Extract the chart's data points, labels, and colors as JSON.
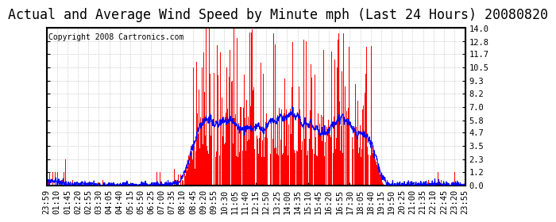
{
  "title": "Actual and Average Wind Speed by Minute mph (Last 24 Hours) 20080820",
  "copyright": "Copyright 2008 Cartronics.com",
  "yticks": [
    0.0,
    1.2,
    2.3,
    3.5,
    4.7,
    5.8,
    7.0,
    8.2,
    9.3,
    10.5,
    11.7,
    12.8,
    14.0
  ],
  "ylim": [
    0,
    14.0
  ],
  "xlabels": [
    "23:59",
    "01:10",
    "01:45",
    "02:20",
    "02:55",
    "03:30",
    "04:05",
    "04:40",
    "05:15",
    "05:50",
    "06:25",
    "07:00",
    "07:35",
    "08:10",
    "08:45",
    "09:20",
    "09:55",
    "10:30",
    "11:05",
    "11:40",
    "12:15",
    "12:50",
    "13:25",
    "14:00",
    "14:35",
    "15:10",
    "15:45",
    "16:20",
    "16:55",
    "17:30",
    "18:05",
    "18:40",
    "19:15",
    "19:50",
    "20:25",
    "21:00",
    "21:35",
    "22:10",
    "22:45",
    "23:20",
    "23:55"
  ],
  "bar_color": "#FF0000",
  "line_color": "#0000FF",
  "background_color": "#FFFFFF",
  "grid_color": "#AAAAAA",
  "title_fontsize": 12,
  "copyright_fontsize": 7,
  "tick_fontsize": 7.5
}
